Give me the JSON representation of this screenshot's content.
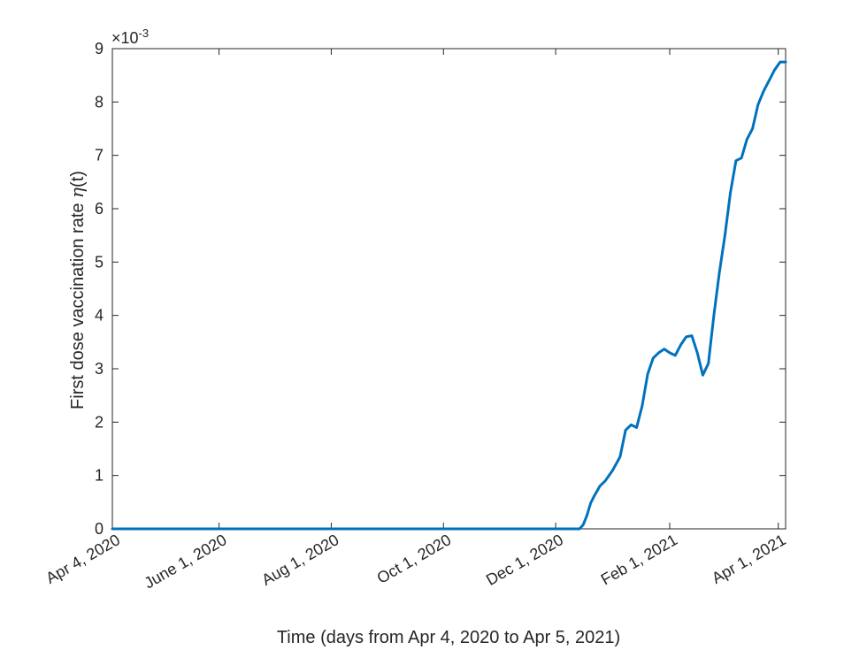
{
  "chart_data": {
    "type": "line",
    "title": "",
    "xlabel": "Time (days from Apr 4, 2020 to Apr 5, 2021)",
    "ylabel_prefix": "First dose vaccination rate ",
    "ylabel_symbol": "η",
    "ylabel_suffix": "(t)",
    "y_exponent_base": "×10",
    "y_exponent_power": "-3",
    "xlim": [
      "2020-04-04",
      "2021-04-05"
    ],
    "ylim": [
      0,
      9
    ],
    "grid": false,
    "x_ticks": [
      {
        "date": "2020-04-04",
        "label": "Apr 4, 2020"
      },
      {
        "date": "2020-06-01",
        "label": "June 1, 2020"
      },
      {
        "date": "2020-08-01",
        "label": "Aug 1, 2020"
      },
      {
        "date": "2020-10-01",
        "label": "Oct 1, 2020"
      },
      {
        "date": "2020-12-01",
        "label": "Dec 1, 2020"
      },
      {
        "date": "2021-02-01",
        "label": "Feb 1, 2021"
      },
      {
        "date": "2021-04-01",
        "label": "Apr 1, 2021"
      }
    ],
    "y_ticks": [
      0,
      1,
      2,
      3,
      4,
      5,
      6,
      7,
      8,
      9
    ],
    "color": "#0072BD",
    "series": [
      {
        "x": [
          "2020-04-04",
          "2020-12-14",
          "2020-12-16",
          "2020-12-18",
          "2020-12-20",
          "2020-12-22",
          "2020-12-25",
          "2020-12-28",
          "2021-01-01",
          "2021-01-05",
          "2021-01-08",
          "2021-01-11",
          "2021-01-14",
          "2021-01-17",
          "2021-01-20",
          "2021-01-23",
          "2021-01-26",
          "2021-01-29",
          "2021-02-01",
          "2021-02-04",
          "2021-02-07",
          "2021-02-10",
          "2021-02-13",
          "2021-02-16",
          "2021-02-19",
          "2021-02-22",
          "2021-02-25",
          "2021-02-28",
          "2021-03-03",
          "2021-03-06",
          "2021-03-09",
          "2021-03-12",
          "2021-03-15",
          "2021-03-18",
          "2021-03-21",
          "2021-03-24",
          "2021-03-27",
          "2021-03-30",
          "2021-04-02",
          "2021-04-05"
        ],
        "y": [
          0,
          0,
          0.08,
          0.25,
          0.48,
          0.62,
          0.8,
          0.9,
          1.1,
          1.35,
          1.85,
          1.95,
          1.9,
          2.3,
          2.9,
          3.2,
          3.3,
          3.37,
          3.3,
          3.25,
          3.45,
          3.6,
          3.62,
          3.3,
          2.88,
          3.1,
          4.0,
          4.8,
          5.5,
          6.3,
          6.9,
          6.95,
          7.3,
          7.5,
          7.95,
          8.2,
          8.4,
          8.6,
          8.75,
          8.75
        ]
      }
    ]
  }
}
